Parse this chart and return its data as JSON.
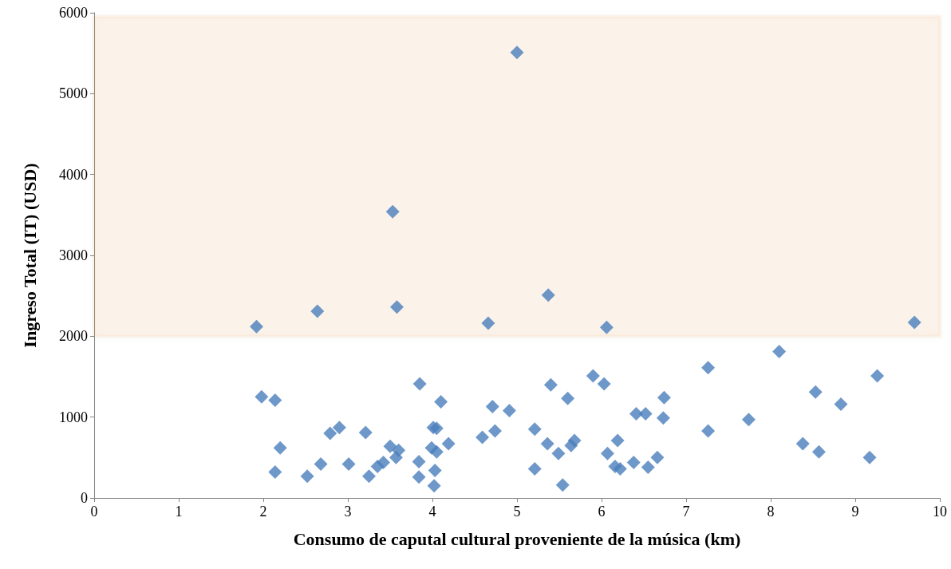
{
  "chart_data": {
    "type": "scatter",
    "xlabel": "Consumo de caputal cultural proveniente de la música (km)",
    "ylabel": "Ingreso Total (IT) (USD)",
    "marker": "diamond",
    "grid": false,
    "xlim": [
      0,
      10
    ],
    "xticks": [
      0,
      1,
      2,
      3,
      4,
      5,
      6,
      7,
      8,
      9,
      10
    ],
    "ylim": [
      0,
      6000
    ],
    "yticks": [
      0,
      1000,
      2000,
      3000,
      4000,
      5000,
      6000
    ],
    "bands": [
      {
        "axis": "y",
        "from": 2000,
        "to": 5950,
        "color": "#f79646"
      }
    ],
    "series": [
      {
        "color": "#4a7ebb",
        "x": [
          1.92,
          2.64,
          3.53,
          3.58,
          5.0,
          4.66,
          5.37,
          6.06,
          9.7,
          8.1,
          7.26,
          9.26,
          5.9,
          6.03,
          3.85,
          5.4,
          1.98,
          2.14,
          8.53,
          4.1,
          5.6,
          6.74,
          4.71,
          4.91,
          8.83,
          6.41,
          6.52,
          6.73,
          7.74,
          5.21,
          4.74,
          7.26,
          2.9,
          2.79,
          3.21,
          4.01,
          4.05,
          4.59,
          2.2,
          3.5,
          3.6,
          3.99,
          4.19,
          4.05,
          5.36,
          5.68,
          5.64,
          6.19,
          6.07,
          5.49,
          8.38,
          8.57,
          9.17,
          6.66,
          6.38,
          6.16,
          6.22,
          6.55,
          3.57,
          3.42,
          3.35,
          3.84,
          3.01,
          2.68,
          2.14,
          2.52,
          3.25,
          3.84,
          4.03,
          5.21,
          4.02,
          5.54
        ],
        "values": [
          2120,
          2310,
          3540,
          2360,
          5510,
          2160,
          2510,
          2110,
          2170,
          1810,
          1610,
          1510,
          1510,
          1410,
          1410,
          1400,
          1250,
          1210,
          1310,
          1190,
          1230,
          1240,
          1130,
          1080,
          1160,
          1040,
          1040,
          990,
          970,
          850,
          830,
          830,
          870,
          800,
          810,
          870,
          860,
          750,
          620,
          640,
          590,
          620,
          670,
          570,
          670,
          710,
          650,
          710,
          550,
          550,
          670,
          570,
          500,
          500,
          440,
          390,
          360,
          380,
          500,
          440,
          390,
          450,
          420,
          420,
          320,
          270,
          270,
          260,
          340,
          360,
          150,
          160
        ]
      }
    ]
  }
}
